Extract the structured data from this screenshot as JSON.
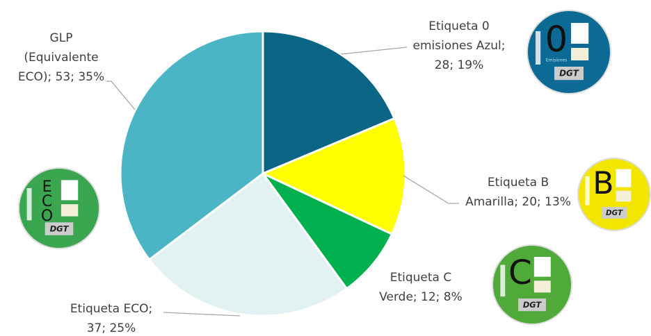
{
  "chart_data": {
    "type": "pie",
    "values": [
      28,
      20,
      12,
      37,
      53
    ],
    "colors": [
      "#0b6584",
      "#ffff00",
      "#00b04f",
      "#e2f2f2",
      "#4bb5c5"
    ],
    "data_labels": [
      [
        "Etiqueta 0",
        "emisiones Azul;",
        "28; 19%"
      ],
      [
        "Etiqueta B",
        "Amarilla; 20; 13%"
      ],
      [
        "Etiqueta C",
        "Verde; 12; 8%"
      ],
      [
        "Etiqueta ECO;",
        "37; 25%"
      ],
      [
        "GLP",
        "(Equivalente",
        "ECO); 53; 35%"
      ]
    ],
    "badges": [
      {
        "letters": [
          "0"
        ],
        "caption": "Emisiones",
        "color": "#0d6a94"
      },
      {
        "letters": [
          "B"
        ],
        "color": "#f2e600"
      },
      {
        "letters": [
          "C"
        ],
        "color": "#4faa3a"
      },
      {
        "letters": [
          "E",
          "C",
          "O"
        ],
        "color": "#3aa650"
      }
    ],
    "badge_brand": "DGT"
  }
}
